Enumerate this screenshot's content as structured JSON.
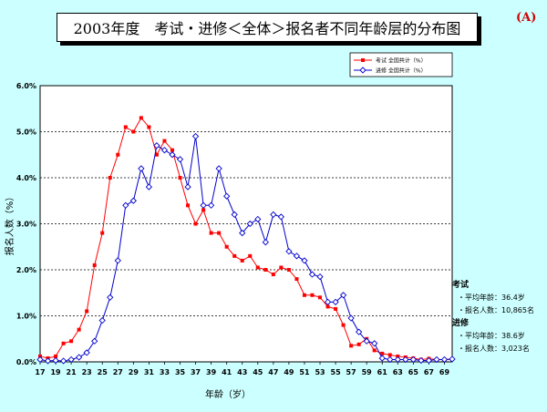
{
  "title": "2003年度　考试・进修＜全体＞报名者不同年龄层的分布图",
  "corner_tag": "(A)",
  "stats": [
    {
      "heading": "考试",
      "rows": [
        "・平均年龄：36.4岁",
        "・报名人数：10,865名"
      ]
    },
    {
      "heading": "进修",
      "rows": [
        "・平均年龄：38.6岁",
        "・报名人数：3,023名"
      ]
    }
  ],
  "chart_data": {
    "type": "line",
    "title": "2003年度　考试・进修＜全体＞报名者不同年龄层的分布图",
    "xlabel": "年龄（岁）",
    "ylabel": "报名人数（%）",
    "ylim": [
      0,
      6
    ],
    "yticks": [
      "0.0%",
      "1.0%",
      "2.0%",
      "3.0%",
      "4.0%",
      "5.0%",
      "6.0%"
    ],
    "xticks": [
      "17",
      "19",
      "21",
      "23",
      "25",
      "27",
      "29",
      "31",
      "33",
      "35",
      "37",
      "39",
      "41",
      "43",
      "45",
      "47",
      "49",
      "51",
      "53",
      "55",
      "57",
      "59",
      "61",
      "63",
      "65",
      "67",
      "69"
    ],
    "grid": true,
    "legend_position": "top-right",
    "x": [
      17,
      18,
      19,
      20,
      21,
      22,
      23,
      24,
      25,
      26,
      27,
      28,
      29,
      30,
      31,
      32,
      33,
      34,
      35,
      36,
      37,
      38,
      39,
      40,
      41,
      42,
      43,
      44,
      45,
      46,
      47,
      48,
      49,
      50,
      51,
      52,
      53,
      54,
      55,
      56,
      57,
      58,
      59,
      60,
      61,
      62,
      63,
      64,
      65,
      66,
      67,
      68,
      69,
      70
    ],
    "series": [
      {
        "name": "考试 全国共计（%）",
        "color": "#ff0000",
        "marker": "square",
        "values": [
          0.12,
          0.08,
          0.12,
          0.4,
          0.45,
          0.7,
          1.1,
          2.1,
          2.8,
          4.0,
          4.5,
          5.1,
          5.0,
          5.3,
          5.1,
          4.5,
          4.8,
          4.6,
          4.0,
          3.4,
          3.0,
          3.3,
          2.8,
          2.8,
          2.5,
          2.3,
          2.2,
          2.3,
          2.05,
          2.0,
          1.9,
          2.05,
          2.0,
          1.8,
          1.45,
          1.45,
          1.4,
          1.2,
          1.15,
          0.8,
          0.35,
          0.38,
          0.5,
          0.25,
          0.18,
          0.15,
          0.12,
          0.1,
          0.08,
          0.05,
          0.07,
          0.05,
          0.05,
          0.06
        ]
      },
      {
        "name": "进修 全国共计（%）",
        "color": "#0000cc",
        "marker": "diamond",
        "values": [
          0.05,
          0.02,
          0.03,
          0.02,
          0.05,
          0.1,
          0.2,
          0.45,
          0.9,
          1.4,
          2.2,
          3.4,
          3.5,
          4.2,
          3.8,
          4.7,
          4.6,
          4.5,
          4.4,
          3.8,
          4.9,
          3.4,
          3.4,
          4.2,
          3.6,
          3.2,
          2.8,
          3.0,
          3.1,
          2.6,
          3.2,
          3.15,
          2.4,
          2.3,
          2.2,
          1.9,
          1.85,
          1.3,
          1.3,
          1.45,
          0.95,
          0.65,
          0.45,
          0.4,
          0.08,
          0.05,
          0.05,
          0.05,
          0.05,
          0.03,
          0.03,
          0.05,
          0.05,
          0.06
        ]
      }
    ]
  }
}
